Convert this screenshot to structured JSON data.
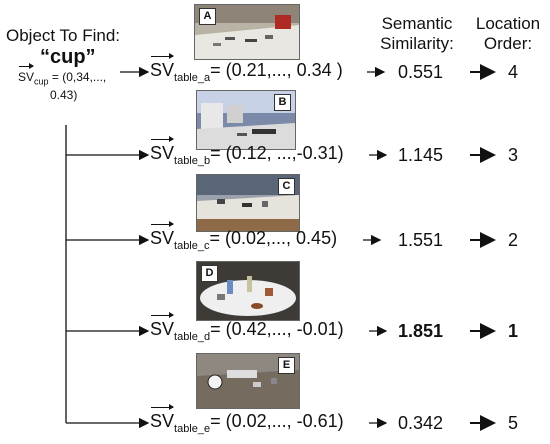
{
  "query": {
    "title": "Object To Find:",
    "object": "“cup”",
    "sv_label": "SV",
    "sv_sub": "cup",
    "vector_line1": "= (0,34,...,",
    "vector_line2": "0.43)"
  },
  "headers": {
    "similarity_line1": "Semantic",
    "similarity_line2": "Similarity:",
    "order_line1": "Location",
    "order_line2": "Order:"
  },
  "tables": [
    {
      "letter": "A",
      "sv": "SV",
      "sub": "table_a",
      "vector": "= (0.21,..., 0.34 )",
      "similarity": "0.551",
      "order": "4",
      "highlight": false
    },
    {
      "letter": "B",
      "sv": "SV",
      "sub": "table_b",
      "vector": "= (0.12, ...,-0.31)",
      "similarity": "1.145",
      "order": "3",
      "highlight": false
    },
    {
      "letter": "C",
      "sv": "SV",
      "sub": "table_c",
      "vector": "= (0.02,..., 0.45)",
      "similarity": "1.551",
      "order": "2",
      "highlight": false
    },
    {
      "letter": "D",
      "sv": "SV",
      "sub": "table_d",
      "vector": "= (0.42,..., -0.01)",
      "similarity": "1.851",
      "order": "1",
      "highlight": true
    },
    {
      "letter": "E",
      "sv": "SV",
      "sub": "table_e",
      "vector": "= (0.02,..., -0.61)",
      "similarity": "0.342",
      "order": "5",
      "highlight": false
    }
  ]
}
